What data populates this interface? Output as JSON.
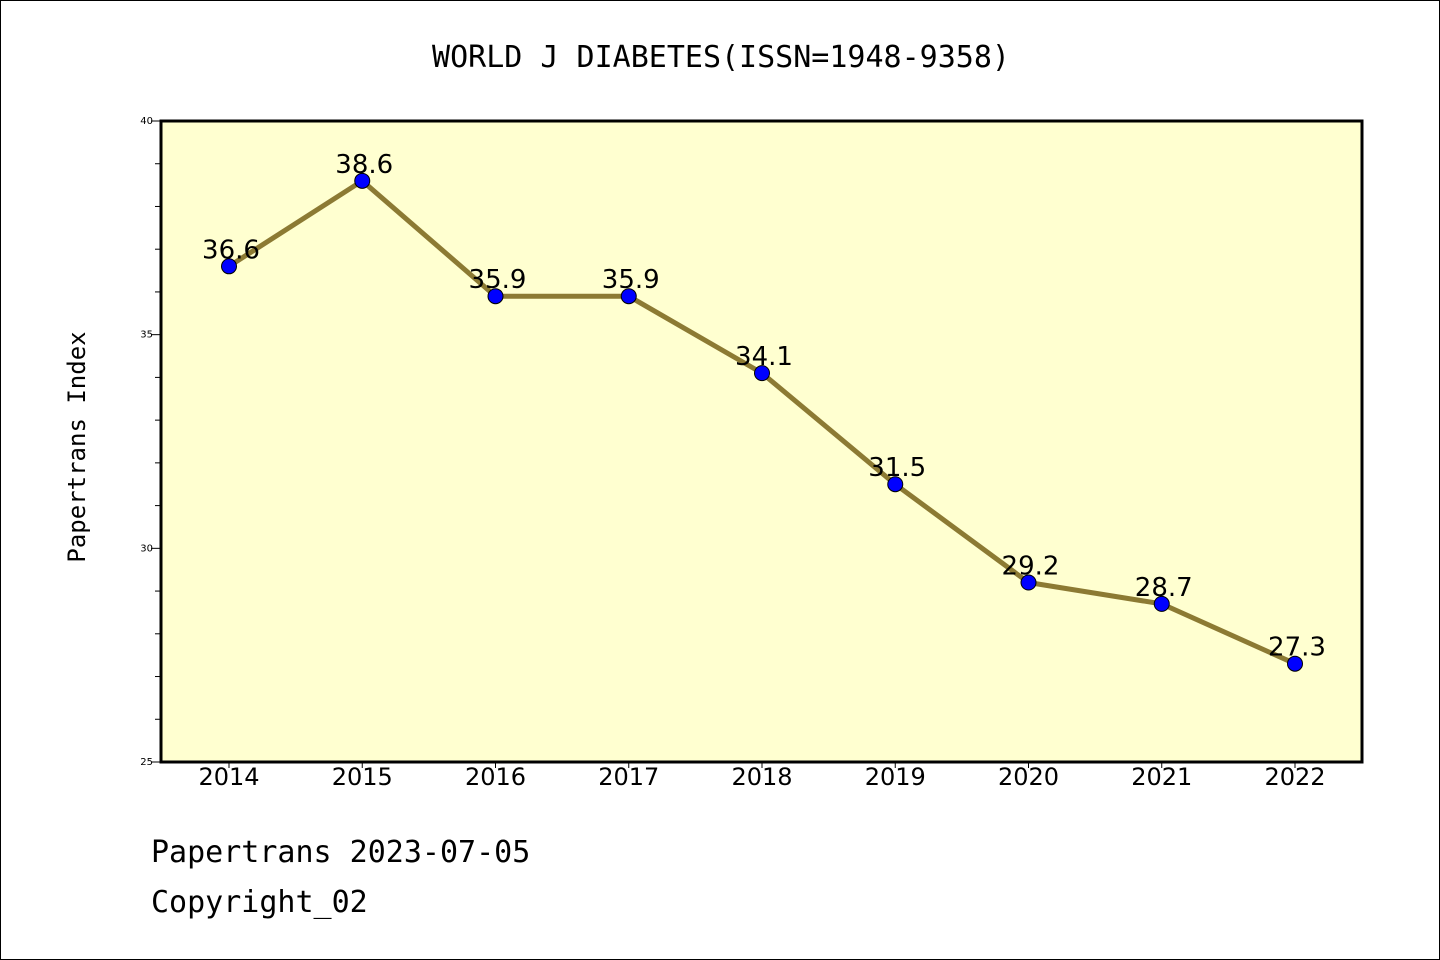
{
  "chart_data": {
    "type": "line",
    "title": "WORLD J DIABETES(ISSN=1948-9358)",
    "ylabel": "Papertrans Index",
    "xlabel": "",
    "categories": [
      "2014",
      "2015",
      "2016",
      "2017",
      "2018",
      "2019",
      "2020",
      "2021",
      "2022"
    ],
    "values": [
      36.6,
      38.6,
      35.9,
      35.9,
      34.1,
      31.5,
      29.2,
      28.7,
      27.3
    ],
    "data_labels": [
      "36.6",
      "38.6",
      "35.9",
      "35.9",
      "34.1",
      "31.5",
      "29.2",
      "28.7",
      "27.3"
    ],
    "ylim": [
      25,
      40
    ],
    "yticks": [
      "25",
      "30",
      "35",
      "40"
    ],
    "grid": false,
    "colors": {
      "plot_background": "#ffffd0",
      "line": "#8c7a33",
      "marker": "#0000ff"
    }
  },
  "footer": {
    "line1": "Papertrans 2023-07-05",
    "line2": "Copyright_02"
  }
}
